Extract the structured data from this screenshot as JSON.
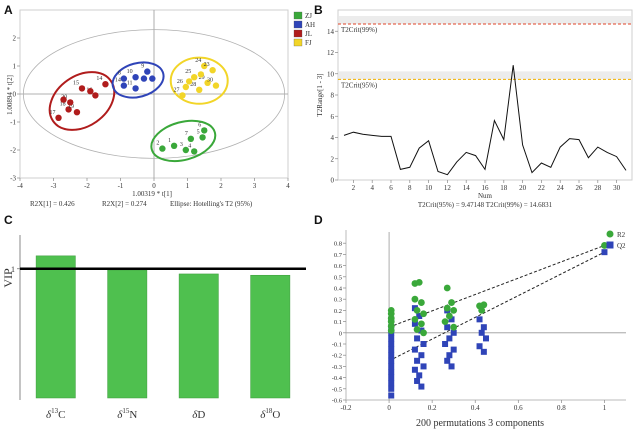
{
  "panel_letters": [
    "A",
    "B",
    "C",
    "D"
  ],
  "chart_data": [
    {
      "panel": "A",
      "type": "scatter",
      "xlabel": "1.00319 * t[1]",
      "ylabel": "1.00894 * t[2]",
      "xlim": [
        -4,
        4
      ],
      "ylim": [
        -3,
        3
      ],
      "x_ticks": [
        -4,
        -3,
        -2,
        -1,
        0,
        1,
        2,
        3,
        4
      ],
      "y_ticks": [
        -3,
        -2,
        -1,
        0,
        1,
        2
      ],
      "footer": [
        "R2X[1] = 0.426",
        "R2X[2] = 0.274",
        "Ellipse: Hotelling's T2 (95%)"
      ],
      "legend": [
        {
          "name": "ZJ",
          "color": "#3aa83a"
        },
        {
          "name": "AH",
          "color": "#2f44b8"
        },
        {
          "name": "JL",
          "color": "#b01c1c"
        },
        {
          "name": "FJ",
          "color": "#f2d528"
        }
      ],
      "series": [
        {
          "name": "JL",
          "color": "#b01c1c",
          "points": [
            {
              "x": -2.85,
              "y": -0.85,
              "label": "17"
            },
            {
              "x": -2.55,
              "y": -0.55,
              "label": "18"
            },
            {
              "x": -2.3,
              "y": -0.65,
              "label": "19"
            },
            {
              "x": -2.5,
              "y": -0.3,
              "label": "20"
            },
            {
              "x": -2.15,
              "y": 0.2,
              "label": "15"
            },
            {
              "x": -1.75,
              "y": -0.05,
              "label": "16"
            },
            {
              "x": -1.45,
              "y": 0.35,
              "label": "14"
            },
            {
              "x": -1.9,
              "y": 0.1,
              "label": ""
            },
            {
              "x": -2.7,
              "y": -0.2,
              "label": ""
            }
          ]
        },
        {
          "name": "AH",
          "color": "#2f44b8",
          "points": [
            {
              "x": -0.9,
              "y": 0.55,
              "label": "8"
            },
            {
              "x": -0.55,
              "y": 0.6,
              "label": "10"
            },
            {
              "x": -0.2,
              "y": 0.8,
              "label": "9"
            },
            {
              "x": -0.9,
              "y": 0.3,
              "label": "14"
            },
            {
              "x": -0.55,
              "y": 0.2,
              "label": "11"
            },
            {
              "x": -0.3,
              "y": 0.55,
              "label": ""
            },
            {
              "x": -0.05,
              "y": 0.55,
              "label": ""
            }
          ]
        },
        {
          "name": "FJ",
          "color": "#f2d528",
          "points": [
            {
              "x": 1.5,
              "y": 1.0,
              "label": "24"
            },
            {
              "x": 1.75,
              "y": 0.85,
              "label": "23"
            },
            {
              "x": 1.2,
              "y": 0.6,
              "label": "25"
            },
            {
              "x": 0.95,
              "y": 0.25,
              "label": "26"
            },
            {
              "x": 1.35,
              "y": 0.15,
              "label": "28"
            },
            {
              "x": 0.85,
              "y": -0.05,
              "label": "27"
            },
            {
              "x": 1.6,
              "y": 0.4,
              "label": "29"
            },
            {
              "x": 1.85,
              "y": 0.3,
              "label": "30"
            },
            {
              "x": 1.4,
              "y": 0.7,
              "label": ""
            },
            {
              "x": 1.05,
              "y": 0.45,
              "label": ""
            }
          ]
        },
        {
          "name": "ZJ",
          "color": "#3aa83a",
          "points": [
            {
              "x": 0.25,
              "y": -1.95,
              "label": "2"
            },
            {
              "x": 0.6,
              "y": -1.85,
              "label": "1"
            },
            {
              "x": 0.95,
              "y": -2.0,
              "label": "3"
            },
            {
              "x": 1.1,
              "y": -1.6,
              "label": "7"
            },
            {
              "x": 1.45,
              "y": -1.55,
              "label": "5"
            },
            {
              "x": 1.5,
              "y": -1.3,
              "label": "6"
            },
            {
              "x": 1.2,
              "y": -2.05,
              "label": "4"
            }
          ]
        }
      ]
    },
    {
      "panel": "B",
      "type": "line",
      "xlabel": "Num",
      "ylabel": "T2Range[1 - 3]",
      "xlim": [
        1,
        31
      ],
      "ylim": [
        0,
        16
      ],
      "x_ticks": [
        2,
        4,
        6,
        8,
        10,
        12,
        14,
        16,
        18,
        20,
        22,
        24,
        26,
        28,
        30
      ],
      "y_ticks": [
        0,
        2,
        4,
        6,
        8,
        10,
        12,
        14
      ],
      "thresholds": [
        {
          "name": "T2Crit(99%)",
          "value": 14.6831,
          "color": "#e0462a"
        },
        {
          "name": "T2Crit(95%)",
          "value": 9.47148,
          "color": "#f0b000"
        }
      ],
      "footer": "T2Crit(95%) = 9.47148 T2Crit(99%) = 14.6831",
      "x": [
        1,
        2,
        3,
        4,
        5,
        6,
        7,
        8,
        9,
        10,
        11,
        12,
        13,
        14,
        15,
        16,
        17,
        18,
        19,
        20,
        21,
        22,
        23,
        24,
        25,
        26,
        27,
        28,
        29,
        30,
        31
      ],
      "values": [
        4.2,
        4.5,
        4.3,
        4.2,
        4.1,
        4.1,
        1.0,
        1.2,
        3.0,
        3.7,
        0.8,
        0.5,
        1.7,
        2.6,
        2.3,
        1.0,
        5.6,
        3.8,
        10.8,
        3.3,
        0.7,
        1.6,
        1.2,
        3.1,
        3.9,
        3.8,
        2.1,
        3.1,
        2.6,
        2.2,
        0.9
      ]
    },
    {
      "panel": "C",
      "type": "bar",
      "ylabel": "VIP",
      "categories": [
        "δ13C",
        "δ15N",
        "δD",
        "δ18O"
      ],
      "category_labels": [
        {
          "base": "δ",
          "sup": "13",
          "elem": "C"
        },
        {
          "base": "δ",
          "sup": "15",
          "elem": "N"
        },
        {
          "base": "δ",
          "sup": "",
          "elem": "D"
        },
        {
          "base": "δ",
          "sup": "18",
          "elem": "O"
        }
      ],
      "values": [
        1.1,
        0.99,
        0.96,
        0.95
      ],
      "reference_line": 1,
      "y_ticks": [
        1
      ],
      "ylim": [
        0,
        1.3
      ],
      "bar_color": "#4fc04f"
    },
    {
      "panel": "D",
      "type": "scatter",
      "xlabel": "200 permutations 3 components",
      "xlim": [
        -0.2,
        1.1
      ],
      "ylim": [
        -0.6,
        0.9
      ],
      "x_ticks": [
        -0.2,
        0,
        0.2,
        0.4,
        0.6,
        0.8,
        1
      ],
      "y_ticks": [
        -0.6,
        -0.5,
        -0.4,
        -0.3,
        -0.2,
        -0.1,
        0,
        0.1,
        0.2,
        0.3,
        0.4,
        0.5,
        0.6,
        0.7,
        0.8
      ],
      "legend": [
        {
          "name": "R2",
          "color": "#3aa83a",
          "shape": "circle"
        },
        {
          "name": "Q2",
          "color": "#2f44b8",
          "shape": "square"
        }
      ],
      "r2_intercept": 0.05,
      "q2_intercept": -0.25,
      "series": [
        {
          "name": "R2",
          "color": "#3aa83a",
          "shape": "circle",
          "points": [
            [
              0.01,
              0.2
            ],
            [
              0.01,
              0.17
            ],
            [
              0.01,
              0.13
            ],
            [
              0.01,
              0.1
            ],
            [
              0.01,
              0.06
            ],
            [
              0.01,
              0.02
            ],
            [
              0.12,
              0.44
            ],
            [
              0.14,
              0.45
            ],
            [
              0.12,
              0.3
            ],
            [
              0.15,
              0.27
            ],
            [
              0.13,
              0.2
            ],
            [
              0.16,
              0.17
            ],
            [
              0.12,
              0.12
            ],
            [
              0.15,
              0.08
            ],
            [
              0.13,
              0.03
            ],
            [
              0.16,
              0.0
            ],
            [
              0.27,
              0.4
            ],
            [
              0.29,
              0.27
            ],
            [
              0.27,
              0.22
            ],
            [
              0.3,
              0.2
            ],
            [
              0.28,
              0.15
            ],
            [
              0.26,
              0.1
            ],
            [
              0.3,
              0.05
            ],
            [
              0.42,
              0.24
            ],
            [
              0.44,
              0.25
            ],
            [
              0.43,
              0.2
            ],
            [
              1.0,
              0.78
            ]
          ]
        },
        {
          "name": "Q2",
          "color": "#2f44b8",
          "shape": "square",
          "points": [
            [
              0.01,
              0.12
            ],
            [
              0.01,
              0.05
            ],
            [
              0.01,
              0.0
            ],
            [
              0.01,
              -0.05
            ],
            [
              0.01,
              -0.1
            ],
            [
              0.01,
              -0.15
            ],
            [
              0.01,
              -0.2
            ],
            [
              0.01,
              -0.25
            ],
            [
              0.01,
              -0.3
            ],
            [
              0.01,
              -0.35
            ],
            [
              0.01,
              -0.4
            ],
            [
              0.01,
              -0.45
            ],
            [
              0.01,
              -0.5
            ],
            [
              0.01,
              -0.56
            ],
            [
              0.12,
              0.22
            ],
            [
              0.14,
              0.15
            ],
            [
              0.12,
              0.08
            ],
            [
              0.15,
              0.02
            ],
            [
              0.13,
              -0.05
            ],
            [
              0.16,
              -0.1
            ],
            [
              0.12,
              -0.15
            ],
            [
              0.15,
              -0.2
            ],
            [
              0.13,
              -0.25
            ],
            [
              0.16,
              -0.3
            ],
            [
              0.12,
              -0.33
            ],
            [
              0.14,
              -0.38
            ],
            [
              0.13,
              -0.43
            ],
            [
              0.15,
              -0.48
            ],
            [
              0.27,
              0.2
            ],
            [
              0.29,
              0.12
            ],
            [
              0.27,
              0.05
            ],
            [
              0.3,
              0.0
            ],
            [
              0.28,
              -0.05
            ],
            [
              0.26,
              -0.1
            ],
            [
              0.3,
              -0.15
            ],
            [
              0.28,
              -0.2
            ],
            [
              0.27,
              -0.25
            ],
            [
              0.29,
              -0.3
            ],
            [
              0.42,
              0.12
            ],
            [
              0.44,
              0.05
            ],
            [
              0.43,
              0.0
            ],
            [
              0.45,
              -0.05
            ],
            [
              0.42,
              -0.12
            ],
            [
              0.44,
              -0.17
            ],
            [
              1.0,
              0.72
            ]
          ]
        }
      ]
    }
  ]
}
